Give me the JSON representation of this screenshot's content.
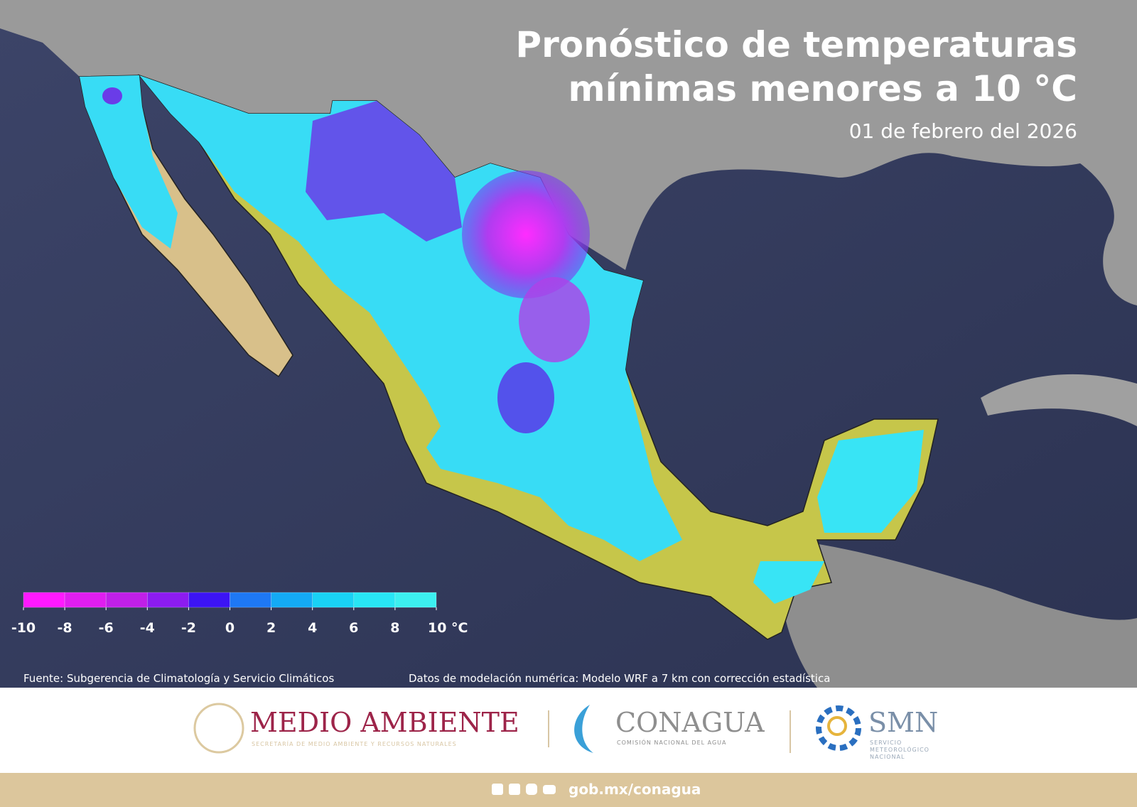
{
  "header": {
    "title_lines": [
      "Pronóstico de temperaturas",
      "mínimas menores a 10 °C"
    ],
    "date": "01 de febrero del 2026"
  },
  "legend": {
    "colors": [
      "#ff19ff",
      "#e01ef0",
      "#c020e8",
      "#8c1cf0",
      "#3c14f5",
      "#1e78f5",
      "#14aaf5",
      "#19d2f5",
      "#28e6f5",
      "#3cf0f0"
    ],
    "range": [
      -10,
      10
    ],
    "ticks": [
      -10,
      -8,
      -6,
      -4,
      -2,
      0,
      2,
      4,
      6,
      8,
      {
        "value": 10,
        "label": "10 °C"
      }
    ]
  },
  "notes": {
    "source": "Fuente: Subgerencia de Climatología y Servicio Climáticos",
    "model": "Datos de modelación numérica: Modelo WRF a 7 km con corrección estadística"
  },
  "logos": {
    "medio_ambiente": {
      "name": "MEDIO AMBIENTE",
      "subtitle": "SECRETARÍA DE MEDIO AMBIENTE Y RECURSOS NATURALES"
    },
    "conagua": {
      "name": "CONAGUA",
      "subtitle": "COMISIÓN NACIONAL DEL AGUA"
    },
    "smn": {
      "name": "SMN",
      "subtitle_lines": [
        "SERVICIO",
        "METEOROLÓGICO",
        "NACIONAL"
      ]
    }
  },
  "footer": {
    "url": "gob.mx/conagua"
  }
}
